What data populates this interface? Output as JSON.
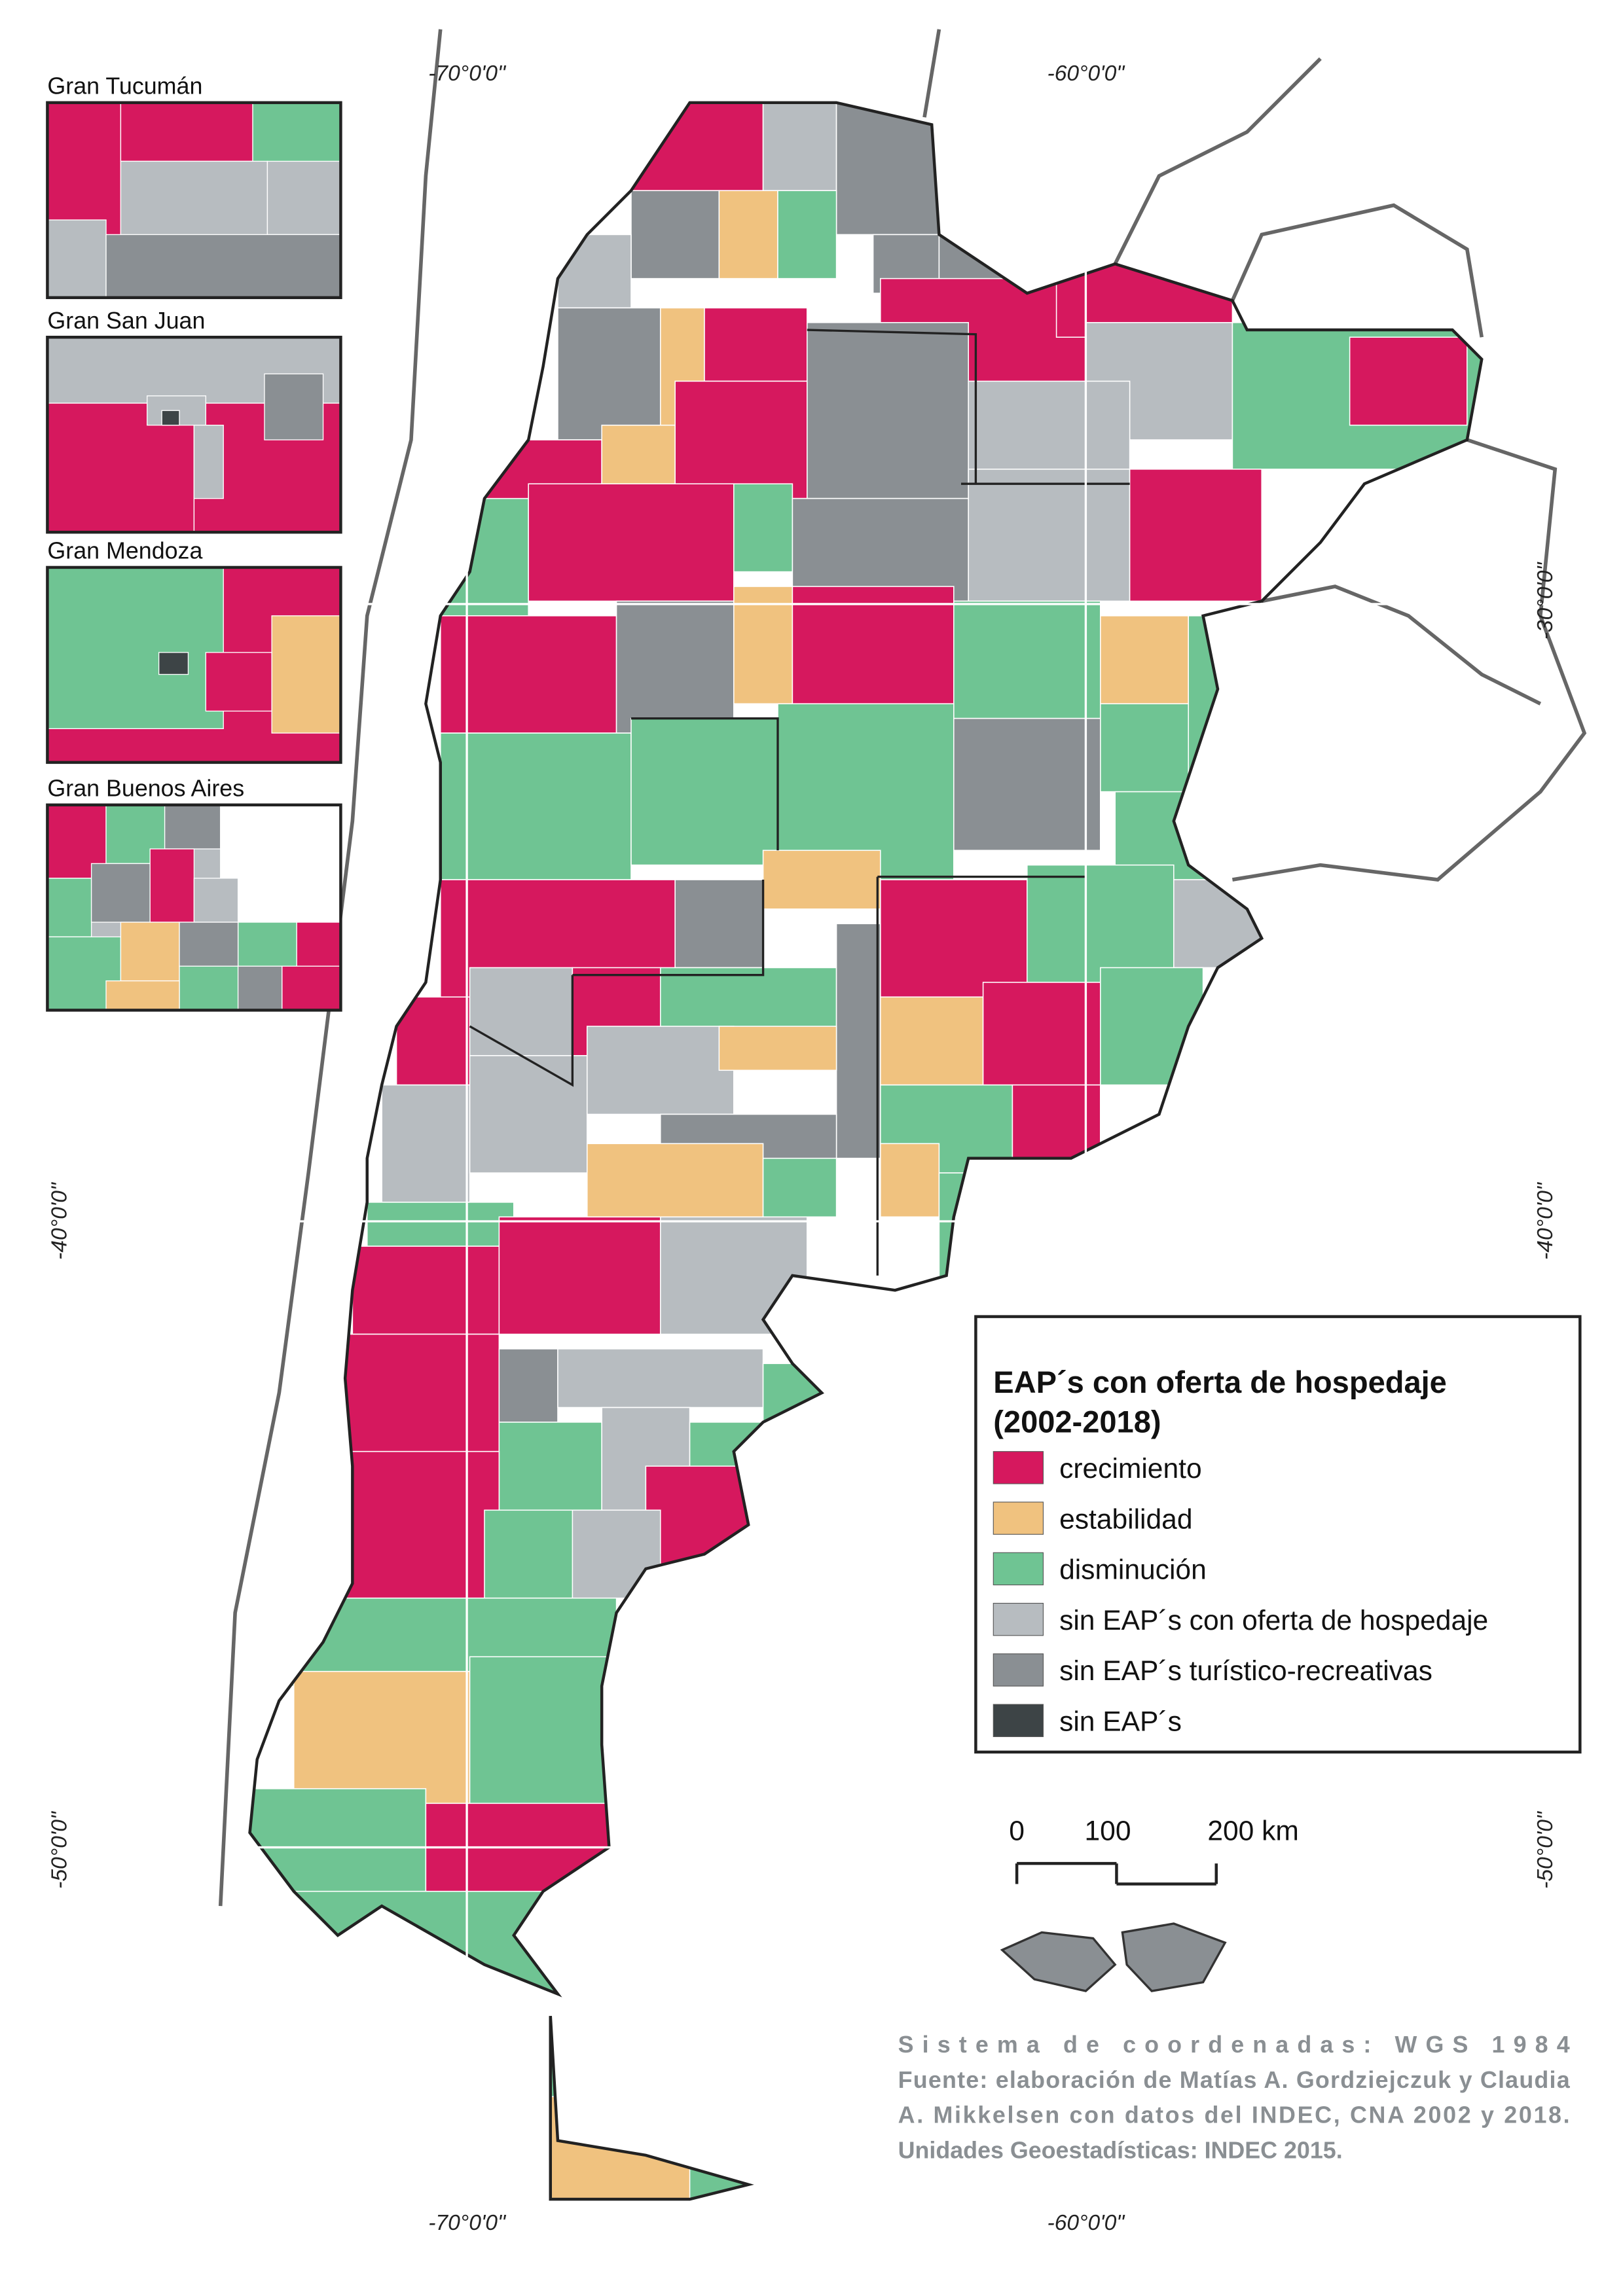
{
  "insets": [
    {
      "title": "Gran Tucumán"
    },
    {
      "title": "Gran San Juan"
    },
    {
      "title": "Gran Mendoza"
    },
    {
      "title": "Gran Buenos Aires"
    }
  ],
  "graticule": {
    "top": [
      "-70°0'0\"",
      "-60°0'0\""
    ],
    "bottom": [
      "-70°0'0\"",
      "-60°0'0\""
    ],
    "left": [
      "-40°0'0\"",
      "-50°0'0\""
    ],
    "right": [
      "-30°0'0\"",
      "-40°0'0\"",
      "-50°0'0\""
    ]
  },
  "legend": {
    "title_lines": [
      "EAP´s con oferta de hospedaje",
      "(2002-2018)"
    ],
    "items": [
      {
        "label": "crecimiento",
        "color": "#d6185e"
      },
      {
        "label": "estabilidad",
        "color": "#f0c27f"
      },
      {
        "label": "disminución",
        "color": "#6fc493"
      },
      {
        "label": "sin EAP´s con oferta de hospedaje",
        "color": "#b7bcc0"
      },
      {
        "label": "sin EAP´s turístico-recreativas",
        "color": "#8a8f93"
      },
      {
        "label": "sin EAP´s",
        "color": "#3d4446"
      }
    ]
  },
  "scale_bar": {
    "ticks": [
      0,
      100,
      {
        "value": 200,
        "label": "200 km"
      }
    ]
  },
  "source": [
    "Sistema de coordenadas: WGS 1984",
    "Fuente: elaboración de Matías A. Gordziejczuk y Claudia",
    "A. Mikkelsen con datos del INDEC, CNA 2002 y 2018.",
    "Unidades Geoestadísticas: INDEC 2015."
  ]
}
